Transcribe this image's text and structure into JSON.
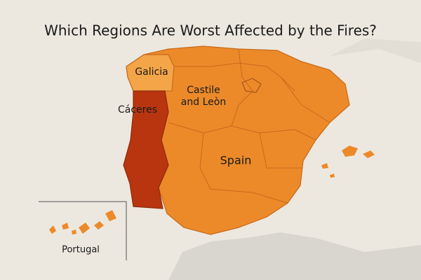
{
  "title": "Which Regions Are Worst Affected by the Fires?",
  "labels": {
    "galicia": "Galicia",
    "castile": [
      "Castile",
      "and Leòn"
    ],
    "caceres": "Cáceres",
    "spain": "Spain",
    "portugal": "Portugal"
  }
}
